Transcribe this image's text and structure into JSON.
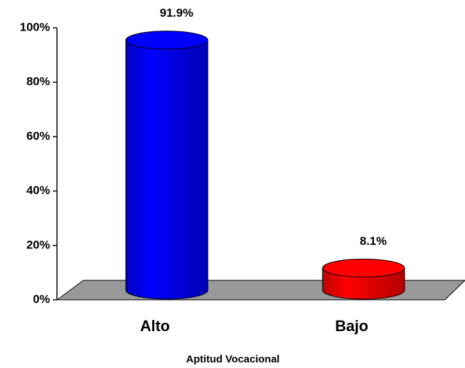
{
  "chart_data": {
    "type": "bar",
    "categories": [
      "Alto",
      "Bajo"
    ],
    "values": [
      91.9,
      8.1
    ],
    "value_labels": [
      "91.9%",
      "8.1%"
    ],
    "colors": [
      "#0000ff",
      "#ff0000"
    ],
    "x_label": "Aptitud Vocacional",
    "ylim": [
      0,
      100
    ],
    "yticks": [
      {
        "value": 0,
        "label": "0%"
      },
      {
        "value": 20,
        "label": "20%"
      },
      {
        "value": 40,
        "label": "40%"
      },
      {
        "value": 60,
        "label": "60%"
      },
      {
        "value": 80,
        "label": "80%"
      },
      {
        "value": 100,
        "label": "100%"
      }
    ]
  }
}
